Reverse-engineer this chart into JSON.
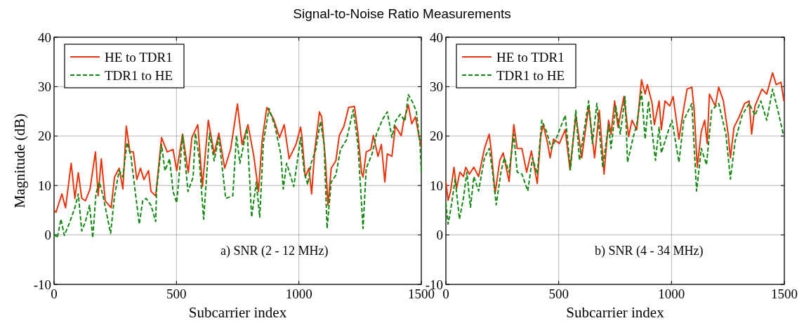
{
  "chart_data": [
    {
      "type": "line",
      "title": "Signal-to-Noise Ratio Measurements",
      "xlabel": "Subcarrier index",
      "ylabel": "Magnitude (dB)",
      "annotations": [
        "a) SNR (2 - 12 MHz)"
      ],
      "xlim": [
        0,
        1500
      ],
      "xticks": [
        0,
        500,
        1000,
        1500
      ],
      "ylim": [
        -10,
        40
      ],
      "yticks": [
        -10,
        0,
        10,
        20,
        30,
        40
      ],
      "grid": true,
      "legend": "top left",
      "series": [
        {
          "name": "HE to TDR1",
          "color": "#e8340a",
          "line_style": "solid",
          "x": [
            0,
            8,
            32,
            47,
            70,
            85,
            99,
            113,
            128,
            147,
            169,
            180,
            193,
            209,
            233,
            247,
            266,
            281,
            295,
            310,
            324,
            338,
            353,
            367,
            386,
            396,
            415,
            439,
            462,
            486,
            501,
            525,
            548,
            563,
            587,
            606,
            630,
            654,
            673,
            697,
            721,
            749,
            768,
            792,
            816,
            835,
            850,
            869,
            897,
            921,
            940,
            960,
            988,
            1007,
            1012,
            1026,
            1041,
            1052,
            1065,
            1084,
            1093,
            1108,
            1119,
            1132,
            1151,
            1165,
            1184,
            1203,
            1227,
            1241,
            1256,
            1262,
            1275,
            1294,
            1304,
            1323,
            1337,
            1351,
            1361,
            1380,
            1394,
            1418,
            1428,
            1447,
            1461,
            1476,
            1490,
            1500
          ],
          "values": [
            5,
            4.6,
            8.3,
            5.5,
            14.5,
            7.4,
            12.6,
            7.4,
            6.9,
            9.3,
            16.8,
            7.9,
            15.4,
            6.9,
            5.5,
            11.7,
            13.5,
            9.3,
            22,
            16.8,
            16.8,
            11.2,
            13.5,
            11.2,
            13,
            8.8,
            7.9,
            19.7,
            16.8,
            17.3,
            13,
            20.4,
            12.6,
            19.7,
            22.3,
            9.8,
            23.2,
            16.4,
            20.6,
            13.5,
            17.3,
            26.5,
            18.3,
            22.3,
            15.9,
            8.8,
            19.2,
            25.8,
            23.4,
            19.7,
            22.3,
            15.4,
            18.3,
            21.8,
            20.1,
            11.7,
            13.5,
            8.3,
            17.3,
            24.9,
            23.9,
            15.4,
            6,
            13.5,
            15,
            20.1,
            22,
            25.8,
            26,
            20.6,
            12.6,
            11.7,
            16.8,
            17.3,
            20.1,
            15.9,
            18.3,
            10.7,
            16.4,
            15.9,
            22,
            20.1,
            23,
            26.3,
            22.5,
            23.9,
            20.1,
            17.8
          ]
        },
        {
          "name": "TDR1 to HE",
          "color": "#118a11",
          "line_style": "dashed",
          "x": [
            0,
            13,
            28,
            42,
            61,
            85,
            99,
            113,
            128,
            145,
            158,
            171,
            185,
            200,
            231,
            247,
            266,
            281,
            298,
            314,
            329,
            348,
            362,
            376,
            396,
            415,
            419,
            439,
            453,
            472,
            486,
            501,
            525,
            547,
            568,
            577,
            592,
            611,
            635,
            654,
            673,
            701,
            730,
            745,
            759,
            788,
            807,
            826,
            840,
            855,
            878,
            902,
            926,
            936,
            950,
            979,
            1007,
            1022,
            1036,
            1050,
            1069,
            1088,
            1103,
            1115,
            1132,
            1151,
            1170,
            1194,
            1222,
            1241,
            1262,
            1275,
            1299,
            1318,
            1342,
            1361,
            1380,
            1394,
            1414,
            1433,
            1447,
            1466,
            1480,
            1495,
            1500
          ],
          "values": [
            0.3,
            -0.6,
            3.2,
            -0.1,
            2.2,
            5.5,
            8.3,
            0.8,
            2.7,
            6,
            -0.6,
            8.3,
            10.7,
            7.9,
            0.3,
            7.9,
            13,
            11.7,
            18.7,
            15.9,
            9.8,
            2.2,
            6.9,
            7.4,
            6,
            2.7,
            9.3,
            18.3,
            13,
            15.4,
            8.8,
            6.5,
            20.1,
            8.8,
            11.7,
            20.6,
            15.9,
            3.2,
            20.6,
            15,
            19.7,
            7.4,
            7.9,
            20.1,
            14.5,
            21.6,
            3.6,
            10.7,
            3.6,
            18.7,
            25.6,
            22,
            16.4,
            9.3,
            14.5,
            9.8,
            19.7,
            12.6,
            10.2,
            14.5,
            17.3,
            23,
            18.3,
            1.3,
            10.7,
            12.1,
            17.3,
            19.2,
            25.3,
            18.3,
            1.3,
            13.5,
            16.4,
            20.6,
            23.4,
            24.9,
            19.7,
            23,
            24.4,
            23,
            28.4,
            26.7,
            24.9,
            18.3,
            12.6
          ]
        }
      ]
    },
    {
      "type": "line",
      "xlabel": "Subcarrier index",
      "annotations": [
        "b) SNR (4 - 34 MHz)"
      ],
      "xlim": [
        0,
        1500
      ],
      "xticks": [
        0,
        500,
        1000,
        1500
      ],
      "ylim": [
        -10,
        40
      ],
      "yticks": [
        -10,
        0,
        10,
        20,
        30,
        40
      ],
      "grid": true,
      "legend": "top left",
      "series": [
        {
          "name": "HE to TDR1",
          "color": "#e8340a",
          "line_style": "solid",
          "x": [
            0,
            10,
            21,
            36,
            47,
            62,
            78,
            88,
            104,
            124,
            145,
            171,
            192,
            202,
            218,
            239,
            254,
            280,
            301,
            316,
            337,
            358,
            379,
            405,
            420,
            431,
            451,
            462,
            477,
            503,
            529,
            550,
            576,
            602,
            633,
            659,
            680,
            701,
            721,
            732,
            748,
            763,
            789,
            810,
            825,
            846,
            867,
            883,
            893,
            914,
            924,
            945,
            955,
            971,
            992,
            1007,
            1033,
            1054,
            1069,
            1090,
            1100,
            1114,
            1132,
            1147,
            1158,
            1168,
            1194,
            1209,
            1230,
            1251,
            1261,
            1277,
            1298,
            1324,
            1344,
            1355,
            1370,
            1401,
            1422,
            1448,
            1464,
            1485,
            1498
          ],
          "values": [
            10.8,
            7,
            8.9,
            13.7,
            9.4,
            12.7,
            11.8,
            13.7,
            12.3,
            13.7,
            11.8,
            17.5,
            20.4,
            16.6,
            8.4,
            15.1,
            16.6,
            10.8,
            22.3,
            17.5,
            17.5,
            12.7,
            17,
            10.4,
            19.9,
            22.3,
            18.5,
            15.6,
            19.4,
            18.5,
            21.3,
            13.2,
            24.2,
            15.6,
            26.1,
            15.6,
            25.2,
            12.3,
            23.2,
            20.4,
            27.1,
            21.8,
            28,
            19.9,
            23.2,
            21.3,
            31.4,
            28.5,
            30.4,
            26.6,
            22.3,
            27.1,
            21.3,
            27.1,
            26.1,
            28,
            19.4,
            25.6,
            29.5,
            29.9,
            25.6,
            13.7,
            20.9,
            23.2,
            18.5,
            28.5,
            26.1,
            29.9,
            27.1,
            20.4,
            15.6,
            21.8,
            23.7,
            26.6,
            27.1,
            20.4,
            26.1,
            29.5,
            28.5,
            32.8,
            30.4,
            30.9,
            27.1
          ]
        },
        {
          "name": "TDR1 to HE",
          "color": "#118a11",
          "line_style": "dashed",
          "x": [
            0,
            10,
            26,
            41,
            60,
            78,
            93,
            109,
            124,
            145,
            171,
            192,
            207,
            223,
            244,
            259,
            280,
            301,
            316,
            337,
            363,
            384,
            405,
            425,
            446,
            467,
            488,
            529,
            552,
            576,
            592,
            633,
            649,
            669,
            695,
            721,
            732,
            753,
            773,
            794,
            805,
            831,
            846,
            867,
            883,
            898,
            929,
            945,
            955,
            981,
            1002,
            1033,
            1054,
            1090,
            1111,
            1132,
            1155,
            1178,
            1209,
            1241,
            1261,
            1282,
            1313,
            1344,
            1370,
            1396,
            1422,
            1448,
            1474,
            1495
          ],
          "values": [
            6.5,
            2.2,
            6.5,
            11.3,
            3.2,
            7.5,
            12.7,
            5.6,
            11.8,
            8.9,
            15.6,
            17.5,
            12.7,
            6.1,
            12.7,
            15.6,
            12.7,
            20.4,
            12.7,
            12.3,
            8.9,
            15.6,
            12.3,
            23.2,
            20.9,
            17.5,
            19.4,
            24.2,
            13.2,
            25.2,
            15.1,
            27.1,
            18.5,
            26.6,
            13.7,
            22.3,
            17.5,
            26.1,
            20.4,
            28,
            14.7,
            19.9,
            22.3,
            29,
            19.4,
            27.1,
            15.1,
            21.8,
            16.6,
            20.4,
            23.2,
            14.7,
            23.2,
            26.6,
            8.9,
            17.5,
            14.2,
            25.2,
            26.6,
            20.4,
            11.3,
            19,
            24.2,
            26.6,
            24.2,
            27.1,
            23.2,
            29.5,
            24.7,
            20.4
          ]
        }
      ]
    }
  ]
}
